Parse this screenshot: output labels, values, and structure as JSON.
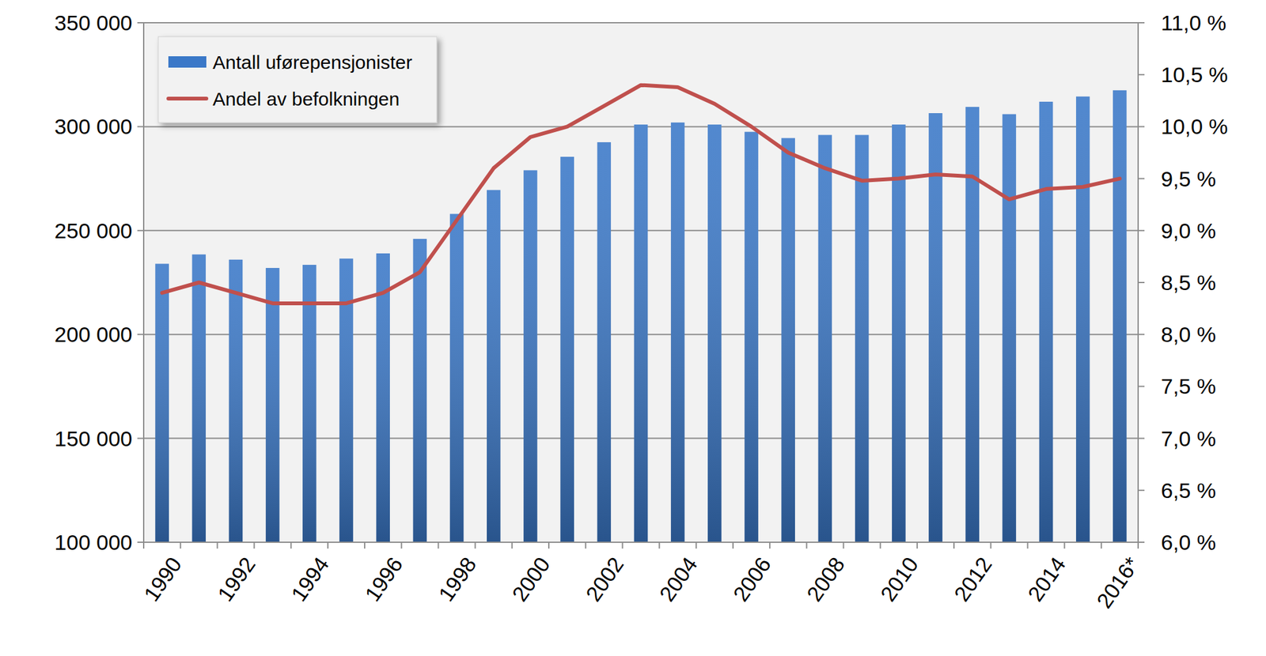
{
  "chart_data": {
    "type": "bar",
    "categories": [
      "1990",
      null,
      "1992",
      null,
      "1994",
      null,
      "1996",
      null,
      "1998",
      null,
      "2000",
      null,
      "2002",
      null,
      "2004",
      null,
      "2006",
      null,
      "2008",
      null,
      "2010",
      null,
      "2012",
      null,
      "2014",
      null,
      "2016*"
    ],
    "series": [
      {
        "name": "Antall uførepensjonister",
        "type": "bar",
        "color": "#3a78c8",
        "values": [
          234000,
          238500,
          236000,
          232000,
          233500,
          236500,
          239000,
          246000,
          258000,
          269500,
          279000,
          285500,
          292500,
          301000,
          302000,
          301000,
          297500,
          294500,
          296000,
          296000,
          301000,
          306500,
          309500,
          306000,
          312000,
          314500,
          317500
        ]
      },
      {
        "name": "Andel av befolkningen",
        "type": "line",
        "color": "#c0504d",
        "axis": "y2",
        "values": [
          8.4,
          8.5,
          8.4,
          8.3,
          8.3,
          8.3,
          8.4,
          8.6,
          9.1,
          9.6,
          9.9,
          10.0,
          10.2,
          10.4,
          10.38,
          10.22,
          10.0,
          9.75,
          9.6,
          9.48,
          9.5,
          9.54,
          9.52,
          9.3,
          9.4,
          9.42,
          9.5
        ]
      }
    ],
    "ylim": [
      100000,
      350000
    ],
    "yticks": [
      {
        "value": 100000,
        "label": "100 000"
      },
      {
        "value": 150000,
        "label": "150 000"
      },
      {
        "value": 200000,
        "label": "200 000"
      },
      {
        "value": 250000,
        "label": "250 000"
      },
      {
        "value": 300000,
        "label": "300 000"
      },
      {
        "value": 350000,
        "label": "350 000"
      }
    ],
    "y2lim": [
      6,
      11
    ],
    "y2ticks": [
      {
        "value": 6,
        "label": "6,0 %"
      },
      {
        "value": 6.5,
        "label": "6,5 %"
      },
      {
        "value": 7,
        "label": "7,0 %"
      },
      {
        "value": 7.5,
        "label": "7,5 %"
      },
      {
        "value": 8,
        "label": "8,0 %"
      },
      {
        "value": 8.5,
        "label": "8,5 %"
      },
      {
        "value": 9,
        "label": "9,0 %"
      },
      {
        "value": 9.5,
        "label": "9,5 %"
      },
      {
        "value": 10,
        "label": "10,0 %"
      },
      {
        "value": 10.5,
        "label": "10,5 %"
      },
      {
        "value": 11,
        "label": "11,0 %"
      }
    ],
    "grid": true,
    "legend": "upper left"
  }
}
